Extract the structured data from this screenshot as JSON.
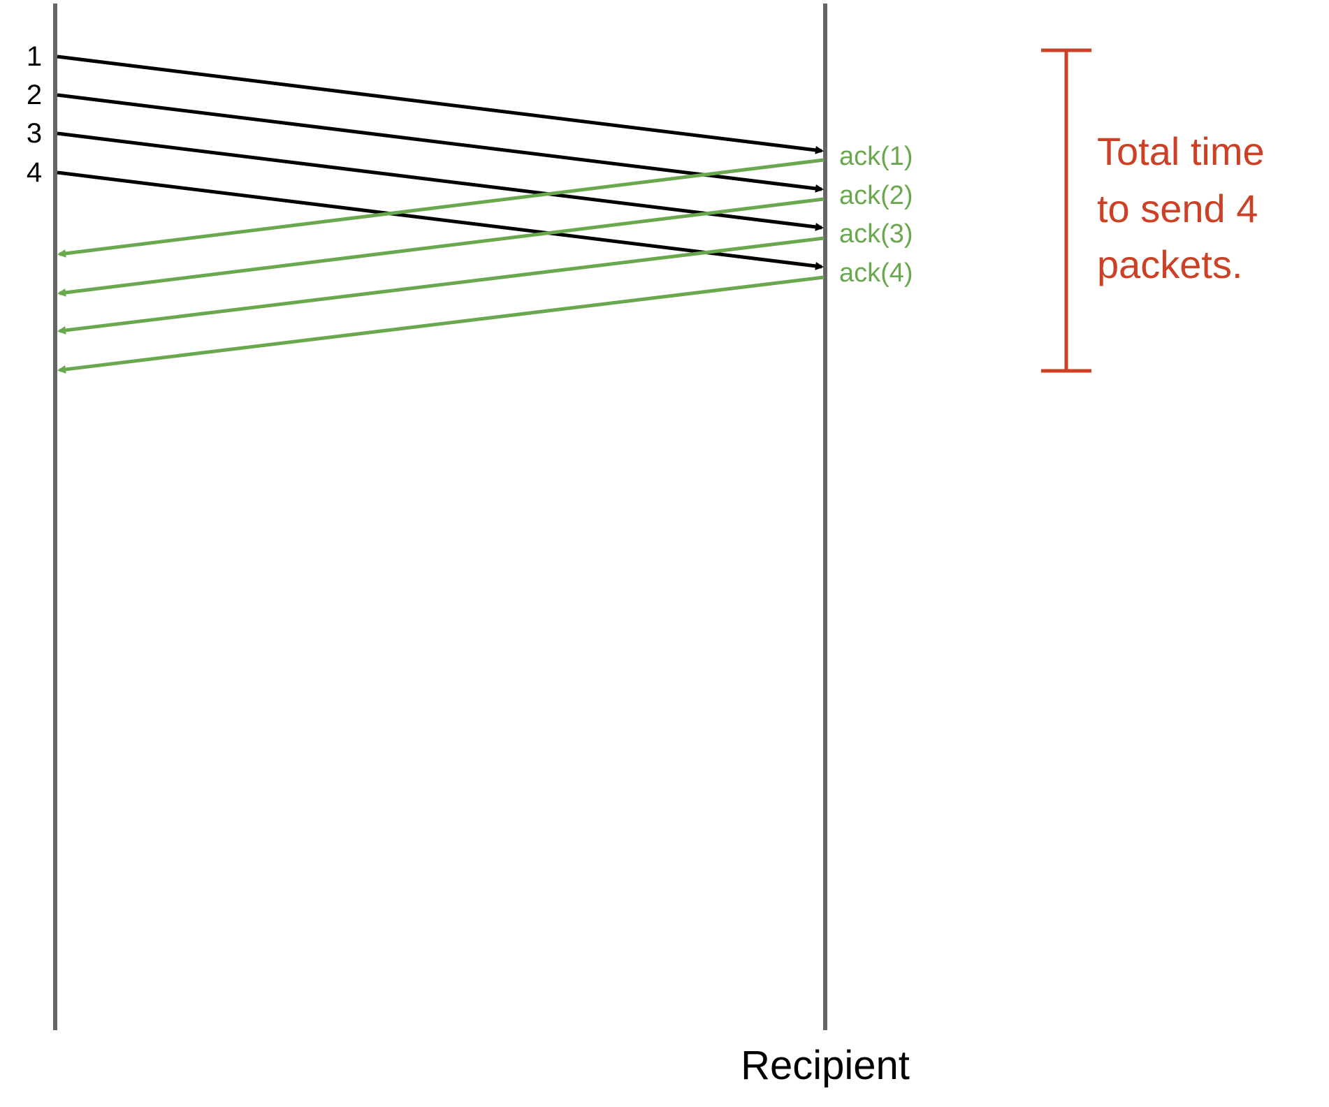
{
  "diagram": {
    "recipient_label": "Recipient",
    "packets": [
      {
        "label": "1",
        "ack": "ack(1)"
      },
      {
        "label": "2",
        "ack": "ack(2)"
      },
      {
        "label": "3",
        "ack": "ack(3)"
      },
      {
        "label": "4",
        "ack": "ack(4)"
      }
    ],
    "bracket_text": [
      "Total time",
      "to send 4",
      "packets."
    ],
    "colors": {
      "timeline": "#666666",
      "packet": "#000000",
      "ack": "#6aa84f",
      "bracket": "#cc4125"
    }
  }
}
